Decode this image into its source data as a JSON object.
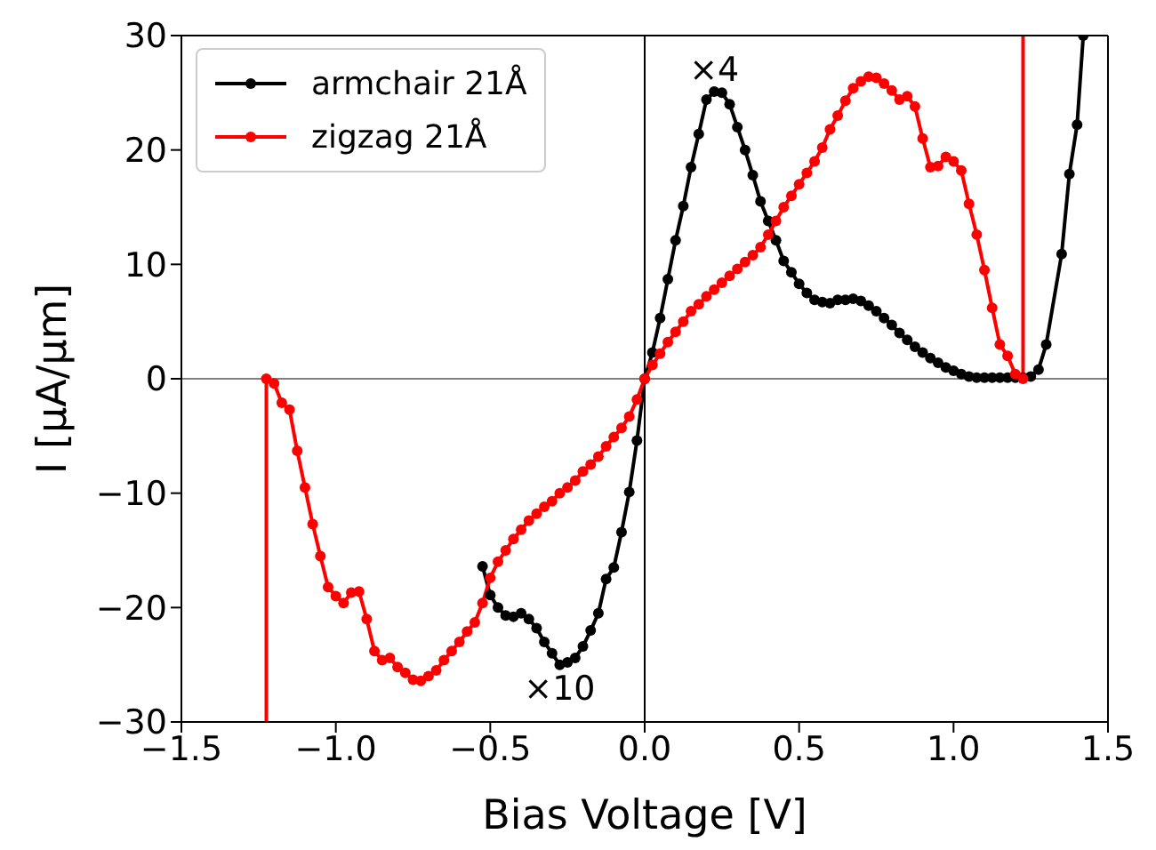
{
  "chart_data": {
    "type": "line",
    "xlabel": "Bias Voltage [V]",
    "ylabel": "I [μA/μm]",
    "xlim": [
      -1.5,
      1.5
    ],
    "ylim": [
      -30,
      30
    ],
    "xticks": [
      {
        "value": -1.5,
        "label": "−1.5"
      },
      {
        "value": -1.0,
        "label": "−1.0"
      },
      {
        "value": -0.5,
        "label": "−0.5"
      },
      {
        "value": 0,
        "label": "0.0"
      },
      {
        "value": 0.5,
        "label": "0.5"
      },
      {
        "value": 1.0,
        "label": "1.0"
      },
      {
        "value": 1.5,
        "label": "1.5"
      }
    ],
    "yticks": [
      {
        "value": -30,
        "label": "−30"
      },
      {
        "value": -20,
        "label": "−20"
      },
      {
        "value": -10,
        "label": "−10"
      },
      0,
      10,
      20,
      30
    ],
    "grid": false,
    "legend": "top left",
    "marker": "circle",
    "line_style": "solid",
    "ref_lines": [
      {
        "axis": "y",
        "value": 0,
        "color": "#808080"
      },
      {
        "axis": "x",
        "value": 0,
        "color": "#000000"
      }
    ],
    "annotations": [
      {
        "text": "×4",
        "x": 0.225,
        "y": 25.1
      },
      {
        "text": "×10",
        "x": -0.275,
        "y": -25.0
      }
    ],
    "series": [
      {
        "name": "armchair 21Å",
        "color": "#000000",
        "x": [
          -0.525,
          -0.5,
          -0.475,
          -0.45,
          -0.425,
          -0.4,
          -0.375,
          -0.35,
          -0.325,
          -0.3,
          -0.275,
          -0.25,
          -0.225,
          -0.2,
          -0.175,
          -0.15,
          -0.125,
          -0.1,
          -0.075,
          -0.05,
          -0.025,
          0,
          0.025,
          0.05,
          0.075,
          0.1,
          0.125,
          0.15,
          0.175,
          0.2,
          0.225,
          0.25,
          0.275,
          0.3,
          0.325,
          0.35,
          0.375,
          0.4,
          0.425,
          0.45,
          0.475,
          0.5,
          0.525,
          0.55,
          0.575,
          0.6,
          0.625,
          0.65,
          0.675,
          0.7,
          0.725,
          0.75,
          0.775,
          0.8,
          0.825,
          0.85,
          0.875,
          0.9,
          0.925,
          0.95,
          0.975,
          1.0,
          1.025,
          1.05,
          1.075,
          1.1,
          1.125,
          1.15,
          1.175,
          1.2,
          1.225,
          1.25,
          1.275,
          1.3,
          1.35,
          1.375,
          1.4,
          1.42
        ],
        "values": [
          -16.4,
          -18.9,
          -20.0,
          -20.7,
          -20.8,
          -20.5,
          -21.0,
          -21.8,
          -23.0,
          -24.0,
          -25.0,
          -24.8,
          -24.4,
          -23.4,
          -22.0,
          -20.5,
          -17.5,
          -16.5,
          -13.4,
          -9.9,
          -5.4,
          0,
          2.3,
          5.3,
          8.7,
          12.1,
          15.1,
          18.5,
          21.4,
          24.4,
          25.1,
          25.0,
          24.0,
          22.0,
          20.0,
          17.8,
          15.5,
          13.8,
          12.1,
          10.3,
          9.3,
          8.3,
          7.5,
          6.9,
          6.7,
          6.6,
          6.9,
          6.9,
          7.0,
          6.8,
          6.4,
          5.9,
          5.3,
          4.7,
          4.0,
          3.4,
          2.8,
          2.3,
          1.8,
          1.4,
          1.0,
          0.7,
          0.4,
          0.2,
          0.1,
          0.1,
          0.1,
          0.1,
          0.1,
          0.1,
          0.1,
          0.2,
          0.8,
          3.0,
          10.9,
          17.9,
          22.2,
          30
        ]
      },
      {
        "name": "zigzag 21Å",
        "color": "#ff0000",
        "x": [
          -1.225,
          -1.2,
          -1.175,
          -1.15,
          -1.125,
          -1.1,
          -1.075,
          -1.05,
          -1.025,
          -1.0,
          -0.975,
          -0.95,
          -0.925,
          -0.9,
          -0.875,
          -0.85,
          -0.825,
          -0.8,
          -0.775,
          -0.75,
          -0.725,
          -0.7,
          -0.675,
          -0.65,
          -0.625,
          -0.6,
          -0.575,
          -0.55,
          -0.525,
          -0.5,
          -0.475,
          -0.45,
          -0.425,
          -0.4,
          -0.375,
          -0.35,
          -0.325,
          -0.3,
          -0.275,
          -0.25,
          -0.225,
          -0.2,
          -0.175,
          -0.15,
          -0.125,
          -0.1,
          -0.075,
          -0.05,
          -0.025,
          0,
          0.025,
          0.05,
          0.075,
          0.1,
          0.125,
          0.15,
          0.175,
          0.2,
          0.225,
          0.25,
          0.275,
          0.3,
          0.325,
          0.35,
          0.375,
          0.4,
          0.425,
          0.45,
          0.475,
          0.5,
          0.525,
          0.55,
          0.575,
          0.6,
          0.625,
          0.65,
          0.675,
          0.7,
          0.725,
          0.75,
          0.775,
          0.8,
          0.825,
          0.85,
          0.875,
          0.9,
          0.925,
          0.95,
          0.975,
          1.0,
          1.025,
          1.05,
          1.075,
          1.1,
          1.125,
          1.15,
          1.175,
          1.2,
          1.225
        ],
        "values": [
          0,
          -0.4,
          -2.1,
          -2.7,
          -6.3,
          -9.5,
          -12.7,
          -15.5,
          -18.2,
          -19.0,
          -19.6,
          -18.7,
          -18.6,
          -21.0,
          -23.8,
          -24.6,
          -24.4,
          -25.2,
          -25.7,
          -26.3,
          -26.4,
          -26.0,
          -25.5,
          -24.6,
          -23.8,
          -23.0,
          -22.1,
          -21.3,
          -19.6,
          -17.4,
          -16.0,
          -15.0,
          -14.0,
          -13.2,
          -12.4,
          -11.8,
          -11.2,
          -10.7,
          -10.0,
          -9.5,
          -8.9,
          -8.1,
          -7.5,
          -6.8,
          -5.9,
          -5.1,
          -4.3,
          -3.3,
          -1.8,
          0,
          1.2,
          2.2,
          3.2,
          4.1,
          5.0,
          5.9,
          6.5,
          7.2,
          7.8,
          8.4,
          9.0,
          9.6,
          10.2,
          10.8,
          11.5,
          12.6,
          13.8,
          15.0,
          16.0,
          17.0,
          18.0,
          19.0,
          20.2,
          21.8,
          23.0,
          24.3,
          25.4,
          26.0,
          26.4,
          26.3,
          25.8,
          25.2,
          24.4,
          24.7,
          23.8,
          21.0,
          18.5,
          18.6,
          19.4,
          19.0,
          18.2,
          15.3,
          12.6,
          9.5,
          6.2,
          3.0,
          2.0,
          0.4,
          0
        ]
      },
      {
        "color": "#ff0000",
        "marker": "none",
        "x": [
          -1.225,
          -1.225
        ],
        "values": [
          0,
          -30
        ]
      },
      {
        "color": "#ff0000",
        "marker": "none",
        "x": [
          1.225,
          1.225
        ],
        "values": [
          0,
          30
        ]
      }
    ]
  }
}
